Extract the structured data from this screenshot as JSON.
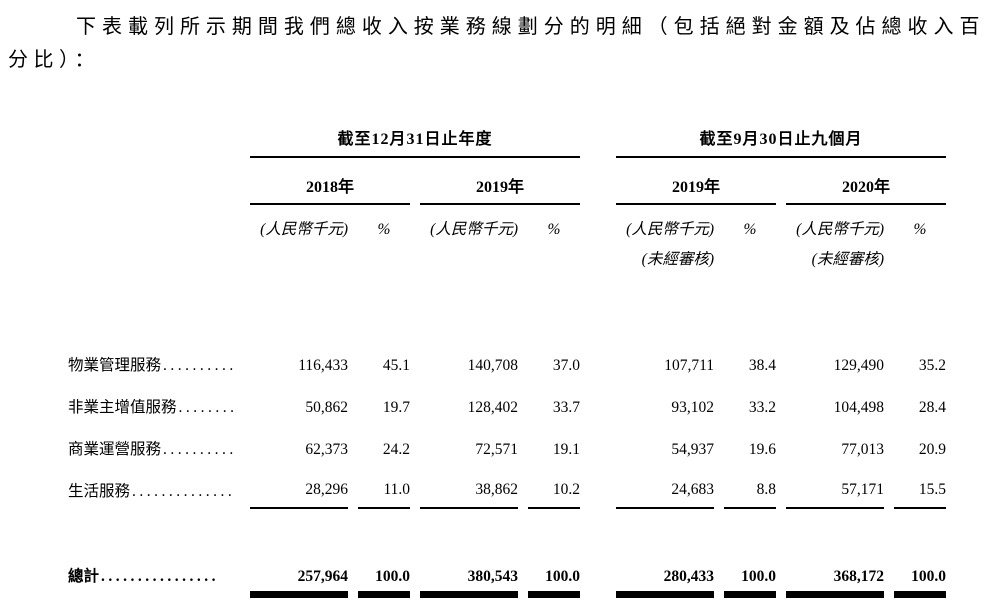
{
  "intro": {
    "text": "下表載列所示期間我們總收入按業務線劃分的明細（包括絕對金額及佔總收入百分比）："
  },
  "table": {
    "period_groups": [
      {
        "label": "截至12月31日止年度",
        "years": [
          "2018年",
          "2019年"
        ]
      },
      {
        "label": "截至9月30日止九個月",
        "years": [
          "2019年",
          "2020年"
        ]
      }
    ],
    "unit_label": "(人民幣千元)",
    "pct_label": "%",
    "unaudited_label": "(未經審核)",
    "rows": [
      {
        "label": "物業管理服務",
        "dots": "..........",
        "values": [
          "116,433",
          "45.1",
          "140,708",
          "37.0",
          "107,711",
          "38.4",
          "129,490",
          "35.2"
        ]
      },
      {
        "label": "非業主增值服務",
        "dots": "........",
        "values": [
          "50,862",
          "19.7",
          "128,402",
          "33.7",
          "93,102",
          "33.2",
          "104,498",
          "28.4"
        ]
      },
      {
        "label": "商業運營服務",
        "dots": "..........",
        "values": [
          "62,373",
          "24.2",
          "72,571",
          "19.1",
          "54,937",
          "19.6",
          "77,013",
          "20.9"
        ]
      },
      {
        "label": "生活服務",
        "dots": "..............",
        "values": [
          "28,296",
          "11.0",
          "38,862",
          "10.2",
          "24,683",
          "8.8",
          "57,171",
          "15.5"
        ]
      }
    ],
    "total": {
      "label": "總計",
      "dots": "................",
      "values": [
        "257,964",
        "100.0",
        "380,543",
        "100.0",
        "280,433",
        "100.0",
        "368,172",
        "100.0"
      ]
    }
  }
}
